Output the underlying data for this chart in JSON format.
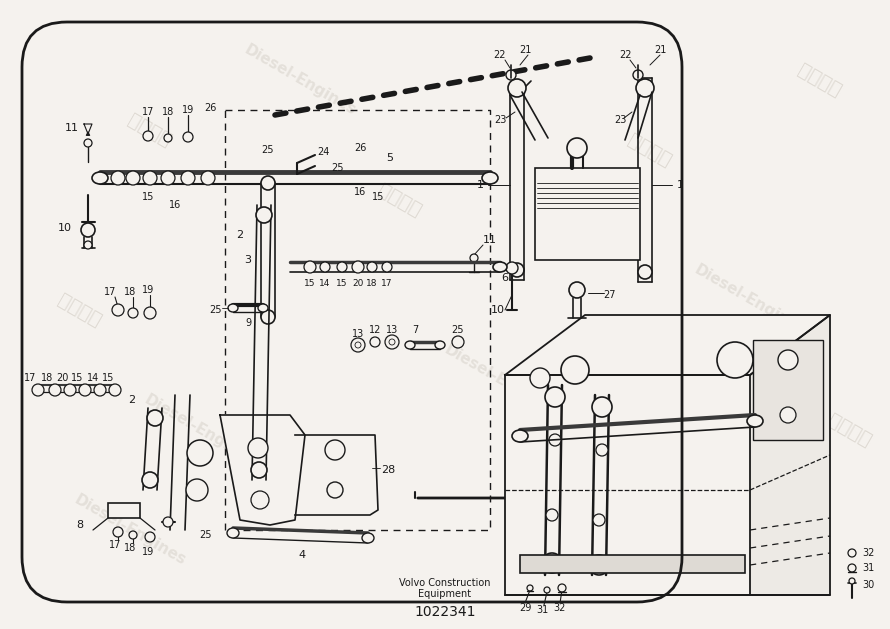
{
  "bg_color": "#f5f2ee",
  "line_color": "#1a1a1a",
  "company": "Volvo Construction\nEquipment",
  "part_number": "1022341",
  "fig_width": 8.9,
  "fig_height": 6.29,
  "wm_items": [
    [
      150,
      130,
      "聚发动力",
      -30,
      14,
      0.25
    ],
    [
      300,
      80,
      "Diesel-Engines",
      -30,
      11,
      0.2
    ],
    [
      80,
      310,
      "聚发动力",
      -30,
      14,
      0.25
    ],
    [
      200,
      430,
      "Diesel-Engines",
      -30,
      11,
      0.2
    ],
    [
      400,
      200,
      "聚发动力",
      -30,
      14,
      0.25
    ],
    [
      500,
      380,
      "Diesel-Engines",
      -30,
      11,
      0.2
    ],
    [
      650,
      150,
      "聚发动力",
      -30,
      14,
      0.25
    ],
    [
      750,
      300,
      "Diesel-Engines",
      -30,
      11,
      0.2
    ],
    [
      820,
      80,
      "聚发动力",
      -30,
      14,
      0.25
    ],
    [
      850,
      430,
      "聚发动力",
      -30,
      14,
      0.25
    ],
    [
      130,
      530,
      "Diesel-Engines",
      -30,
      11,
      0.2
    ],
    [
      600,
      500,
      "Diesel-Engines",
      -30,
      11,
      0.2
    ]
  ]
}
